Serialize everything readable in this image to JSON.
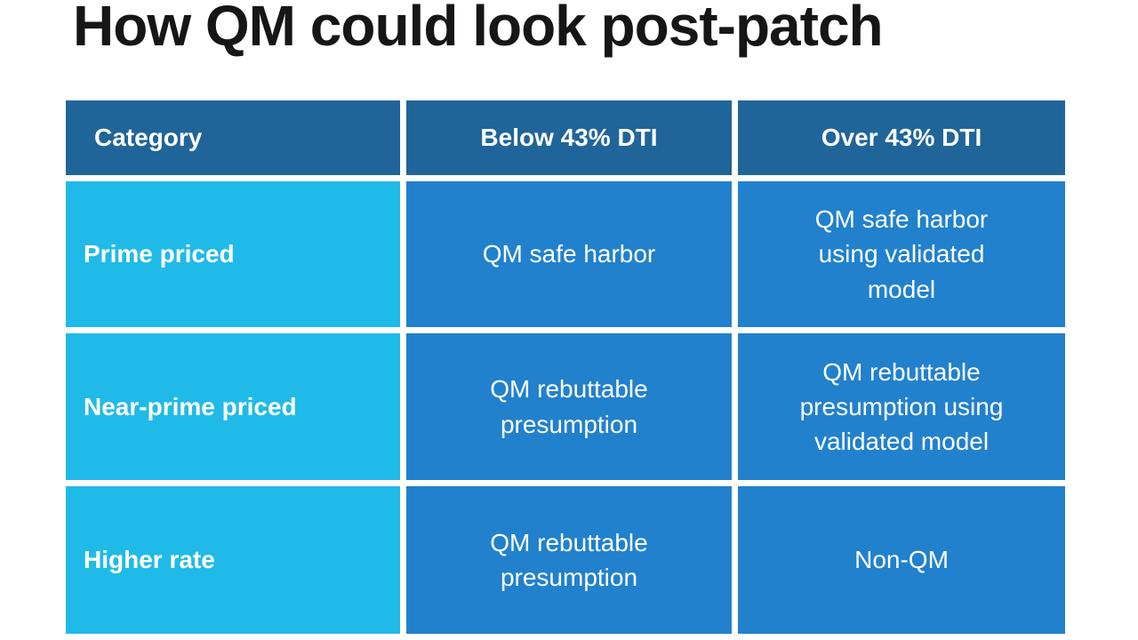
{
  "title": "How QM could look post-patch",
  "colors": {
    "background": "#ffffff",
    "title_text": "#161616",
    "header_bg": "#206599",
    "category_bg": "#20bae8",
    "cell_bg": "#2181cd",
    "text": "#ffffff"
  },
  "table": {
    "headers": [
      "Category",
      "Below 43% DTI",
      "Over 43% DTI"
    ],
    "rows": [
      {
        "category": "Prime priced",
        "below": "QM safe harbor",
        "over": "QM safe harbor using validated model"
      },
      {
        "category": "Near-prime priced",
        "below": "QM rebuttable presumption",
        "over": "QM rebuttable presumption using validated model"
      },
      {
        "category": "Higher rate",
        "below": "QM rebuttable presumption",
        "over": "Non-QM"
      }
    ]
  }
}
